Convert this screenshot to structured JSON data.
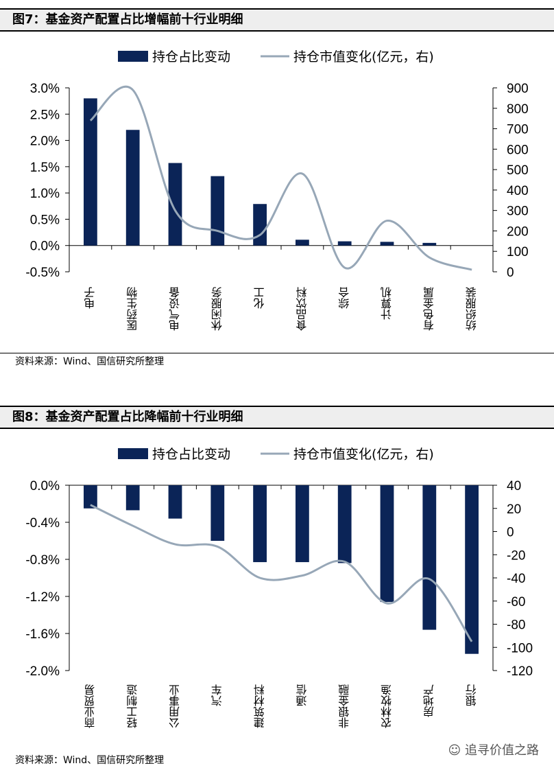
{
  "figures": [
    {
      "title": "图7：基金资产配置占比增幅前十行业明细",
      "source": "资料来源：Wind、国信研究所整理",
      "legend": {
        "bar": "持仓占比变动",
        "line": "持仓市值变化(亿元，右)"
      },
      "colors": {
        "bar": "#0b2457",
        "line": "#97a7b7"
      }
    },
    {
      "title": "图8：基金资产配置占比降幅前十行业明细",
      "source": "资料来源：Wind、国信研究所整理",
      "legend": {
        "bar": "持仓占比变动",
        "line": "持仓市值变化(亿元，右)"
      },
      "colors": {
        "bar": "#0b2457",
        "line": "#97a7b7"
      }
    }
  ],
  "watermark": "追寻价值之路",
  "chart_data": [
    {
      "type": "bar",
      "categories": [
        "电子",
        "医药生物",
        "电气设备",
        "休闲服务",
        "化工",
        "食品饮料",
        "综合",
        "计算机",
        "有色金属",
        "纺织服装"
      ],
      "series": [
        {
          "name": "持仓占比变动",
          "axis": "left",
          "values": [
            2.8,
            2.2,
            1.57,
            1.32,
            0.79,
            0.11,
            0.08,
            0.07,
            0.05,
            0.0
          ]
        },
        {
          "name": "持仓市值变化(亿元，右)",
          "axis": "right",
          "type": "line",
          "values": [
            740,
            890,
            300,
            200,
            180,
            480,
            20,
            250,
            70,
            10
          ]
        }
      ],
      "y_left": {
        "min": -0.5,
        "max": 3.0,
        "ticks": [
          "3.0%",
          "2.5%",
          "2.0%",
          "1.5%",
          "1.0%",
          "0.5%",
          "0.0%",
          "-0.5%"
        ]
      },
      "y_right": {
        "min": 0,
        "max": 900,
        "ticks": [
          "900",
          "800",
          "700",
          "600",
          "500",
          "400",
          "300",
          "200",
          "100",
          "0"
        ]
      },
      "legend_position": "top"
    },
    {
      "type": "bar",
      "categories": [
        "商业贸易",
        "轻工制造",
        "公用事业",
        "汽车",
        "建筑材料",
        "通信",
        "非银金融",
        "农林牧渔",
        "房地产",
        "银行"
      ],
      "series": [
        {
          "name": "持仓占比变动",
          "axis": "left",
          "values": [
            -0.25,
            -0.27,
            -0.36,
            -0.6,
            -0.83,
            -0.83,
            -0.84,
            -1.26,
            -1.56,
            -1.82
          ]
        },
        {
          "name": "持仓市值变化(亿元，右)",
          "axis": "right",
          "type": "line",
          "values": [
            23,
            5,
            -11,
            -13,
            -40,
            -38,
            -26,
            -62,
            -41,
            -95
          ]
        }
      ],
      "y_left": {
        "min": -2.0,
        "max": 0.0,
        "ticks": [
          "0.0%",
          "-0.4%",
          "-0.8%",
          "-1.2%",
          "-1.6%",
          "-2.0%"
        ]
      },
      "y_right": {
        "min": -120,
        "max": 40,
        "ticks": [
          "40",
          "20",
          "0",
          "-20",
          "-40",
          "-60",
          "-80",
          "-100",
          "-120"
        ]
      },
      "legend_position": "top"
    }
  ]
}
